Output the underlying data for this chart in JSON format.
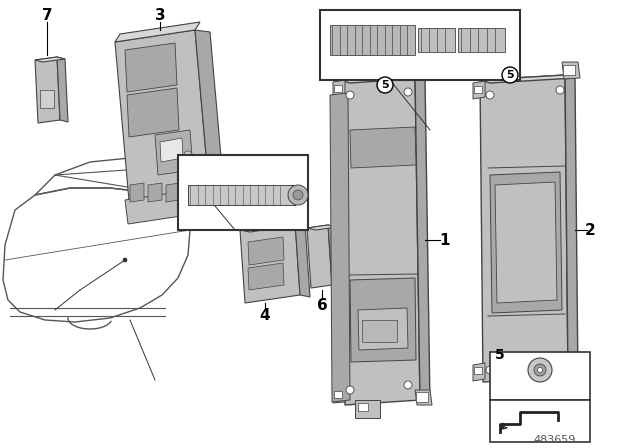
{
  "background_color": "#ffffff",
  "diagram_number": "483659",
  "gray_light": "#c0c0c0",
  "gray_mid": "#a8a8a8",
  "gray_dark": "#888888",
  "gray_very_light": "#d8d8d8",
  "outline_color": "#444444",
  "text_color": "#000000"
}
